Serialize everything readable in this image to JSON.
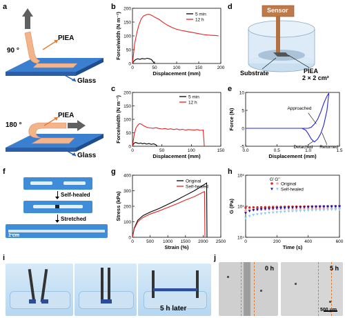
{
  "panel_labels": [
    "a",
    "b",
    "c",
    "d",
    "e",
    "f",
    "g",
    "h",
    "i",
    "j"
  ],
  "panel_a": {
    "top": {
      "angle": "90 °",
      "material": "PIEA",
      "substrate": "Glass"
    },
    "bottom": {
      "angle": "180 °",
      "material": "PIEA",
      "substrate": "Glass"
    }
  },
  "panel_d": {
    "sensor": "Sensor",
    "substrate": "Substrate",
    "material": "PIEA",
    "area": "2 × 2 cm²"
  },
  "panel_f": {
    "step1": "Self-healed",
    "step2": "Stretched",
    "scale": "1 cm"
  },
  "panel_i": {
    "caption": "5 h later"
  },
  "panel_j": {
    "left_time": "0 h",
    "right_time": "5 h",
    "scale": "500 μm"
  },
  "colors": {
    "black": "#000000",
    "red": "#e32424",
    "blue": "#2222dd",
    "pink": "#f4a8a8",
    "lightblue": "#88ccee",
    "navy": "#1a1aa0"
  },
  "chart_data": [
    {
      "panel": "b",
      "type": "line",
      "title": "",
      "xlabel": "Displacement (mm)",
      "ylabel": "Force/width (N m⁻¹)",
      "xlim": [
        0,
        200
      ],
      "ylim": [
        0,
        200
      ],
      "xticks": [
        0,
        50,
        100,
        150,
        200
      ],
      "yticks": [
        0,
        50,
        100,
        150,
        200
      ],
      "legend_position": "top-right",
      "series": [
        {
          "name": "5 min",
          "color": "#000000",
          "x": [
            0,
            3,
            7,
            12,
            17,
            22,
            28,
            33,
            38,
            43,
            47,
            50
          ],
          "y": [
            0,
            8,
            14,
            17,
            15,
            18,
            16,
            19,
            17,
            14,
            6,
            0
          ]
        },
        {
          "name": "12 h",
          "color": "#e32424",
          "x": [
            0,
            5,
            10,
            15,
            20,
            25,
            30,
            35,
            40,
            45,
            50,
            60,
            70,
            80,
            90,
            100,
            110,
            120,
            130,
            140,
            150,
            160,
            170,
            180,
            190,
            195
          ],
          "y": [
            0,
            72,
            112,
            142,
            162,
            172,
            176,
            178,
            177,
            173,
            168,
            160,
            148,
            138,
            130,
            124,
            120,
            117,
            114,
            111,
            108,
            105,
            103,
            102,
            101,
            100
          ]
        }
      ]
    },
    {
      "panel": "c",
      "type": "line",
      "title": "",
      "xlabel": "Displacement (mm)",
      "ylabel": "Force/width (N m⁻¹)",
      "xlim": [
        0,
        150
      ],
      "ylim": [
        0,
        200
      ],
      "xticks": [
        0,
        50,
        100,
        150
      ],
      "yticks": [
        0,
        50,
        100,
        150,
        200
      ],
      "legend_position": "top-right",
      "series": [
        {
          "name": "5 min",
          "color": "#000000",
          "x": [
            0,
            2,
            5,
            8,
            11,
            14,
            17,
            20,
            24,
            28,
            32,
            36,
            40,
            42
          ],
          "y": [
            0,
            10,
            14,
            12,
            10,
            12,
            9,
            11,
            8,
            10,
            7,
            9,
            5,
            0
          ]
        },
        {
          "name": "12 h",
          "color": "#e32424",
          "x": [
            0,
            3,
            6,
            9,
            12,
            15,
            20,
            25,
            30,
            35,
            40,
            45,
            50,
            55,
            60,
            65,
            70,
            75,
            80,
            85,
            90,
            95,
            100,
            105,
            110,
            115,
            120,
            121,
            122
          ],
          "y": [
            0,
            45,
            68,
            78,
            84,
            82,
            75,
            70,
            68,
            67,
            69,
            66,
            64,
            66,
            63,
            65,
            62,
            64,
            61,
            63,
            60,
            62,
            61,
            60,
            62,
            59,
            60,
            30,
            0
          ]
        }
      ]
    },
    {
      "panel": "e",
      "type": "line",
      "title": "",
      "xlabel": "Displacement (mm)",
      "ylabel": "Force (N)",
      "xlim": [
        0,
        1.5
      ],
      "ylim": [
        -5,
        10
      ],
      "xticks": [
        0.0,
        0.5,
        1.0,
        1.5
      ],
      "yticks": [
        -5,
        0,
        5,
        10
      ],
      "annotations": [
        "Approached",
        "Detached",
        "Returned"
      ],
      "series": [
        {
          "name": "",
          "color": "#2222dd",
          "x": [
            0.0,
            0.9,
            1.0,
            1.05,
            1.1,
            1.15,
            1.2,
            1.25,
            1.3,
            1.33,
            1.3,
            1.25,
            1.2,
            1.15,
            1.1,
            1.05,
            1.0,
            0.96,
            0.9,
            0.0
          ],
          "y": [
            0,
            0,
            0,
            0.3,
            1.2,
            2.5,
            4.5,
            7.0,
            9.0,
            9.8,
            5.0,
            1.0,
            -1.5,
            -3.0,
            -3.8,
            -3.0,
            -1.5,
            -0.5,
            0,
            0
          ]
        }
      ]
    },
    {
      "panel": "g",
      "type": "line",
      "title": "",
      "xlabel": "Strain (%)",
      "ylabel": "Stress (kPa)",
      "xlim": [
        0,
        2500
      ],
      "ylim": [
        0,
        400
      ],
      "xticks": [
        0,
        500,
        1000,
        1500,
        2000,
        2500
      ],
      "yticks": [
        0,
        100,
        200,
        300,
        400
      ],
      "legend_position": "top-left",
      "series": [
        {
          "name": "Original",
          "color": "#000000",
          "x": [
            0,
            50,
            150,
            300,
            500,
            750,
            1000,
            1250,
            1500,
            1750,
            2000,
            2100,
            2110
          ],
          "y": [
            0,
            60,
            110,
            140,
            162,
            185,
            212,
            240,
            270,
            300,
            335,
            350,
            0
          ]
        },
        {
          "name": "Self-healed",
          "color": "#e32424",
          "x": [
            0,
            50,
            150,
            300,
            500,
            750,
            1000,
            1250,
            1500,
            1750,
            1950,
            2040,
            2050
          ],
          "y": [
            0,
            55,
            100,
            128,
            150,
            170,
            192,
            215,
            240,
            262,
            285,
            295,
            0
          ]
        }
      ]
    },
    {
      "panel": "h",
      "type": "scatter",
      "title": "",
      "xlabel": "Time (s)",
      "ylabel": "G (Pa)",
      "xlim": [
        0,
        600
      ],
      "ylim_log10": [
        4,
        6
      ],
      "yscale": "log",
      "xticks": [
        0,
        200,
        400,
        600
      ],
      "ytick_labels": [
        "10⁴",
        "10⁵",
        "10⁶"
      ],
      "legend_position": "top-center",
      "legend_headers": [
        "G'",
        "G''"
      ],
      "series": [
        {
          "name": "Original",
          "color": "#e32424",
          "marker": "circle",
          "x": [
            0,
            25,
            50,
            75,
            100,
            125,
            150,
            175,
            200,
            225,
            250,
            275,
            300,
            325,
            350,
            375,
            400,
            425,
            450,
            475,
            500,
            525,
            550,
            575,
            600
          ],
          "y": [
            90000,
            91000,
            92000,
            92500,
            93000,
            93500,
            94000,
            94500,
            95000,
            95500,
            96000,
            96300,
            96600,
            97000,
            97300,
            97600,
            98000,
            98300,
            98600,
            99000,
            99300,
            99600,
            100000,
            100300,
            100600
          ]
        },
        {
          "name": "Original",
          "color": "#f4a8a8",
          "marker": "circle",
          "x": [
            0,
            25,
            50,
            75,
            100,
            125,
            150,
            175,
            200,
            225,
            250,
            275,
            300,
            325,
            350,
            375,
            400,
            425,
            450,
            475,
            500,
            525,
            550,
            575,
            600
          ],
          "y": [
            72000,
            74000,
            76000,
            77000,
            78000,
            79000,
            80000,
            81000,
            82000,
            82500,
            83000,
            83500,
            84000,
            84500,
            85000,
            85500,
            86000,
            86500,
            87000,
            87500,
            88000,
            88300,
            88600,
            89000,
            89300
          ]
        },
        {
          "name": "Self-healed",
          "color": "#1a1aa0",
          "marker": "triangle-down",
          "x": [
            0,
            25,
            50,
            75,
            100,
            125,
            150,
            175,
            200,
            225,
            250,
            275,
            300,
            325,
            350,
            375,
            400,
            425,
            450,
            475,
            500,
            525,
            550,
            575,
            600
          ],
          "y": [
            60000,
            70000,
            75000,
            78000,
            80000,
            82000,
            83500,
            85000,
            86500,
            87500,
            88500,
            89500,
            90500,
            91500,
            92500,
            93000,
            94000,
            95000,
            95500,
            96500,
            97000,
            97500,
            98000,
            98500,
            99000
          ]
        },
        {
          "name": "Self-healed",
          "color": "#88ccee",
          "marker": "triangle-down",
          "x": [
            0,
            25,
            50,
            75,
            100,
            125,
            150,
            175,
            200,
            225,
            250,
            275,
            300,
            325,
            350,
            375,
            400,
            425,
            450,
            475,
            500,
            525,
            550,
            575,
            600
          ],
          "y": [
            42000,
            48000,
            52000,
            55000,
            57000,
            59000,
            61000,
            62500,
            64000,
            65500,
            67000,
            68000,
            69000,
            70000,
            71000,
            72000,
            73000,
            74000,
            75000,
            75500,
            76000,
            77000,
            77500,
            78000,
            78500
          ]
        }
      ]
    }
  ]
}
